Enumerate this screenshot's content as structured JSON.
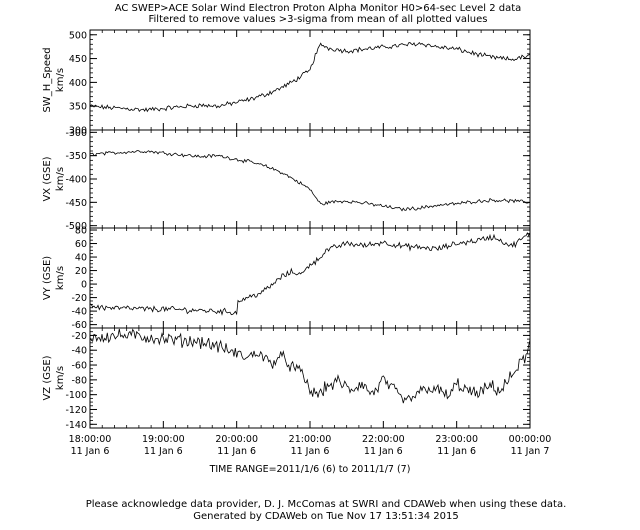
{
  "header": {
    "title_line1": "AC  SWEP>ACE Solar Wind Electron Proton Alpha Monitor  H0>64-sec Level 2 data",
    "title_line2": "Filtered to remove values >3-sigma from mean of all plotted values"
  },
  "time_range_label": "TIME RANGE=2011/1/6 (6) to 2011/1/7 (7)",
  "footer": {
    "line1": "Please acknowledge data provider, D. J. McComas at SWRI and CDAWeb when using these data.",
    "line2": "Generated by CDAWeb on Tue Nov 17 13:51:34 2015"
  },
  "x_axis": {
    "range_hours": [
      18,
      24
    ],
    "ticks": [
      {
        "hour": 18,
        "time": "18:00:00",
        "date": "11 Jan  6"
      },
      {
        "hour": 19,
        "time": "19:00:00",
        "date": "11 Jan  6"
      },
      {
        "hour": 20,
        "time": "20:00:00",
        "date": "11 Jan  6"
      },
      {
        "hour": 21,
        "time": "21:00:00",
        "date": "11 Jan  6"
      },
      {
        "hour": 22,
        "time": "22:00:00",
        "date": "11 Jan  6"
      },
      {
        "hour": 23,
        "time": "23:00:00",
        "date": "11 Jan  6"
      },
      {
        "hour": 24,
        "time": "00:00:00",
        "date": "11 Jan  7"
      }
    ],
    "minor_per_major": 6
  },
  "chart_data": [
    {
      "type": "line",
      "ylabel": "SW_H_Speed",
      "yunits": "km/s",
      "ylim": [
        300,
        510
      ],
      "yticks": [
        300,
        350,
        400,
        450,
        500
      ],
      "yminor": 10,
      "series": [
        {
          "x": [
            18.0,
            18.25,
            18.5,
            18.75,
            19.0,
            19.25,
            19.5,
            19.75,
            20.0,
            20.2,
            20.4,
            20.6,
            20.75,
            20.9,
            21.0,
            21.08,
            21.15,
            21.25,
            21.5,
            21.75,
            22.0,
            22.25,
            22.5,
            22.75,
            23.0,
            23.25,
            23.5,
            23.75,
            24.0
          ],
          "y": [
            350,
            347,
            345,
            342,
            345,
            349,
            352,
            350,
            358,
            365,
            375,
            388,
            400,
            415,
            425,
            460,
            480,
            472,
            466,
            470,
            474,
            478,
            482,
            474,
            470,
            460,
            452,
            448,
            456
          ]
        }
      ]
    },
    {
      "type": "line",
      "ylabel": "VX (GSE)",
      "yunits": "km/s",
      "ylim": [
        -505,
        -295
      ],
      "yticks": [
        -500,
        -450,
        -400,
        -350,
        -300
      ],
      "yminor": 10,
      "series": [
        {
          "x": [
            18.0,
            18.25,
            18.5,
            18.75,
            19.0,
            19.25,
            19.5,
            19.75,
            20.0,
            20.2,
            20.4,
            20.6,
            20.75,
            20.9,
            21.0,
            21.08,
            21.15,
            21.25,
            21.5,
            21.75,
            22.0,
            22.25,
            22.5,
            22.75,
            23.0,
            23.25,
            23.5,
            23.75,
            24.0
          ],
          "y": [
            -347,
            -345,
            -342,
            -340,
            -344,
            -348,
            -352,
            -350,
            -358,
            -364,
            -373,
            -385,
            -398,
            -412,
            -422,
            -440,
            -455,
            -450,
            -447,
            -452,
            -458,
            -465,
            -462,
            -456,
            -453,
            -448,
            -445,
            -447,
            -450
          ]
        }
      ]
    },
    {
      "type": "line",
      "ylabel": "VY (GSE)",
      "yunits": "km/s",
      "ylim": [
        -65,
        83
      ],
      "yticks": [
        -60,
        -40,
        -20,
        0,
        20,
        40,
        60,
        80
      ],
      "yminor": 5,
      "series": [
        {
          "x": [
            18.0,
            18.1,
            18.25,
            18.5,
            18.75,
            19.0,
            19.25,
            19.5,
            19.75,
            20.0,
            20.02,
            20.15,
            20.35,
            20.5,
            20.6,
            20.75,
            20.9,
            21.0,
            21.1,
            21.2,
            21.35,
            21.5,
            21.75,
            22.0,
            22.25,
            22.5,
            22.75,
            23.0,
            23.25,
            23.5,
            23.75,
            24.0
          ],
          "y": [
            -30,
            -34,
            -35,
            -36,
            -37,
            -37,
            -38,
            -39,
            -40,
            -42,
            -25,
            -20,
            -12,
            0,
            10,
            18,
            15,
            30,
            35,
            48,
            55,
            60,
            57,
            62,
            56,
            54,
            52,
            60,
            64,
            70,
            56,
            75
          ]
        }
      ]
    },
    {
      "type": "line",
      "ylabel": "VZ (GSE)",
      "yunits": "km/s",
      "ylim": [
        -145,
        -10
      ],
      "yticks": [
        -140,
        -120,
        -100,
        -80,
        -60,
        -40,
        -20
      ],
      "yminor": 5,
      "series": [
        {
          "x": [
            18.0,
            18.25,
            18.5,
            18.75,
            19.0,
            19.25,
            19.5,
            19.75,
            20.0,
            20.15,
            20.3,
            20.45,
            20.6,
            20.75,
            20.9,
            21.0,
            21.1,
            21.25,
            21.4,
            21.55,
            21.7,
            21.85,
            22.0,
            22.15,
            22.3,
            22.45,
            22.6,
            22.75,
            22.9,
            23.0,
            23.15,
            23.3,
            23.45,
            23.6,
            23.75,
            23.85,
            23.95,
            24.0
          ],
          "y": [
            -22,
            -21,
            -20,
            -22,
            -25,
            -27,
            -28,
            -35,
            -45,
            -50,
            -42,
            -58,
            -48,
            -62,
            -72,
            -95,
            -100,
            -88,
            -82,
            -95,
            -85,
            -100,
            -80,
            -95,
            -110,
            -100,
            -90,
            -95,
            -102,
            -85,
            -95,
            -100,
            -88,
            -95,
            -75,
            -60,
            -48,
            -30
          ]
        }
      ]
    }
  ]
}
